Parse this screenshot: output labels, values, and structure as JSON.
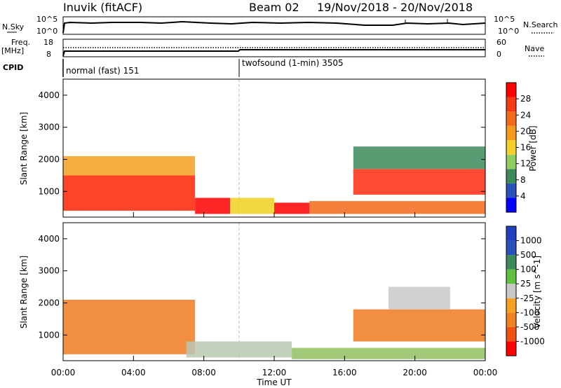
{
  "header": {
    "title": "Inuvik (fitACF)",
    "beam": "Beam 02",
    "date_range": "19/Nov/2018 - 20/Nov/2018"
  },
  "params": {
    "nsky_label": "N.Sky",
    "nsky_ticks": [
      "10^5",
      "10^0"
    ],
    "nsearch_label": "N.Search",
    "nsearch_ticks": [
      "10^5",
      "10^0"
    ],
    "freq_label": "Freq.",
    "freq_unit": "[MHz]",
    "freq_ticks": [
      "18",
      "8"
    ],
    "nave_label": "Nave",
    "nave_ticks": [
      "60",
      "0"
    ],
    "cpid_label": "CPID",
    "cpid_segments": [
      {
        "label": "normal (fast) 151",
        "start_hour": 0
      },
      {
        "label": "twofsound (1-min) 3505",
        "start_hour": 10
      }
    ]
  },
  "chart_data": [
    {
      "type": "heatmap",
      "name": "power",
      "ylabel": "Slant Range [km]",
      "colorbar_label": "Power [dB]",
      "colorbar_ticks": [
        "28",
        "24",
        "20",
        "16",
        "12",
        "8",
        "4"
      ],
      "colors": [
        "#0000ff",
        "#2a52be",
        "#3c8a5a",
        "#8fcf5f",
        "#f5d02a",
        "#f59a1a",
        "#f26a1a",
        "#f43a12",
        "#ff0000"
      ],
      "xlim": [
        0,
        24
      ],
      "ylim": [
        200,
        4500
      ],
      "yticks": [
        1000,
        2000,
        3000,
        4000
      ],
      "regions": [
        {
          "t0": 0,
          "t1": 7.5,
          "r0": 400,
          "r1": 1500,
          "color": "#ff2200"
        },
        {
          "t0": 0,
          "t1": 7.5,
          "r0": 1500,
          "r1": 2100,
          "color": "#f5a020"
        },
        {
          "t0": 7.5,
          "t1": 9.5,
          "r0": 300,
          "r1": 800,
          "color": "#ff0000"
        },
        {
          "t0": 9.5,
          "t1": 12,
          "r0": 300,
          "r1": 800,
          "color": "#f0d020"
        },
        {
          "t0": 12,
          "t1": 14,
          "r0": 300,
          "r1": 650,
          "color": "#ff0000"
        },
        {
          "t0": 14,
          "t1": 24,
          "r0": 300,
          "r1": 700,
          "color": "#f26a1a"
        },
        {
          "t0": 16.5,
          "t1": 24,
          "r0": 900,
          "r1": 1700,
          "color": "#ff2a10"
        },
        {
          "t0": 16.5,
          "t1": 24,
          "r0": 1700,
          "r1": 2400,
          "color": "#3c8a5a"
        }
      ]
    },
    {
      "type": "heatmap",
      "name": "velocity",
      "ylabel": "Slant Range [km]",
      "xlabel": "Time UT",
      "colorbar_label": "Velocity [m s^-1]",
      "colorbar_ticks": [
        "1000",
        "500",
        "100",
        "25",
        "-25",
        "-100",
        "-500",
        "-1000"
      ],
      "colors": [
        "#ff0000",
        "#f05010",
        "#f08020",
        "#f5a020",
        "#c8c8c8",
        "#60c040",
        "#3c8a5a",
        "#2a52be",
        "#2040c0"
      ],
      "xlim": [
        0,
        24
      ],
      "ylim": [
        200,
        4500
      ],
      "yticks": [
        1000,
        2000,
        3000,
        4000
      ],
      "xticks": [
        "00:00",
        "04:00",
        "08:00",
        "12:00",
        "16:00",
        "20:00",
        "00:00"
      ],
      "regions": [
        {
          "t0": 0,
          "t1": 7.5,
          "r0": 400,
          "r1": 2100,
          "color": "#f07a20"
        },
        {
          "t0": 7,
          "t1": 13,
          "r0": 300,
          "r1": 800,
          "color": "#b8c8b0"
        },
        {
          "t0": 13,
          "t1": 24,
          "r0": 250,
          "r1": 600,
          "color": "#90c060"
        },
        {
          "t0": 16.5,
          "t1": 24,
          "r0": 800,
          "r1": 1800,
          "color": "#f07a20"
        },
        {
          "t0": 18.5,
          "t1": 22,
          "r0": 1800,
          "r1": 2500,
          "color": "#c8c8c8"
        }
      ]
    }
  ]
}
